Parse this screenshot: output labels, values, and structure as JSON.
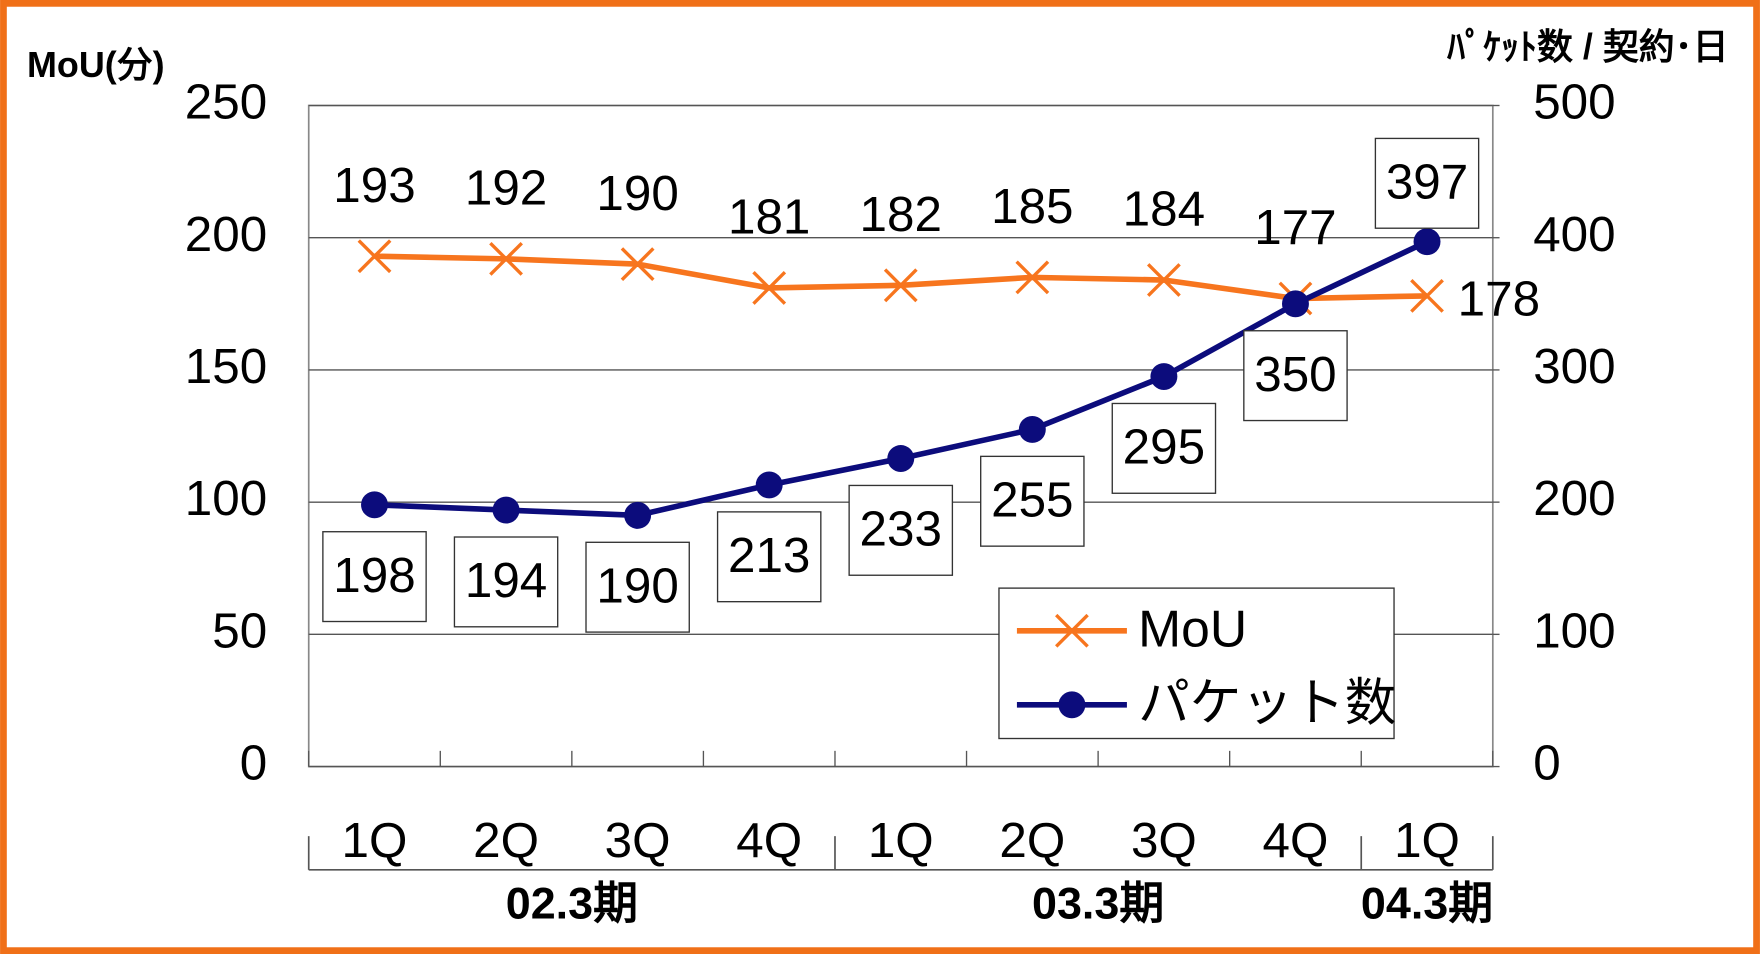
{
  "chart_data": {
    "type": "line",
    "y_title": "MoU(分)",
    "y2_title": "ﾊﾟｹｯﾄ数 / 契約･日",
    "categories": [
      "1Q",
      "2Q",
      "3Q",
      "4Q",
      "1Q",
      "2Q",
      "3Q",
      "4Q",
      "1Q"
    ],
    "groups": [
      {
        "name": "02.3期",
        "count": 4
      },
      {
        "name": "03.3期",
        "count": 4
      },
      {
        "name": "04.3期",
        "count": 1
      }
    ],
    "series": [
      {
        "name": "MoU",
        "color": "#f7751e",
        "marker": "x",
        "values": [
          193,
          192,
          190,
          181,
          182,
          185,
          184,
          177,
          178
        ]
      },
      {
        "name": "パケット数",
        "color": "#0c0c7c",
        "marker": "circle",
        "axis": "y2",
        "values": [
          198,
          194,
          190,
          213,
          233,
          255,
          295,
          350,
          397
        ]
      }
    ],
    "ylim": [
      0,
      250
    ],
    "yticks": [
      0,
      50,
      100,
      150,
      200,
      250
    ],
    "y2lim": [
      0,
      500
    ],
    "y2ticks": [
      0,
      100,
      200,
      300,
      400,
      500
    ],
    "grid": true,
    "legend": "lower right"
  }
}
